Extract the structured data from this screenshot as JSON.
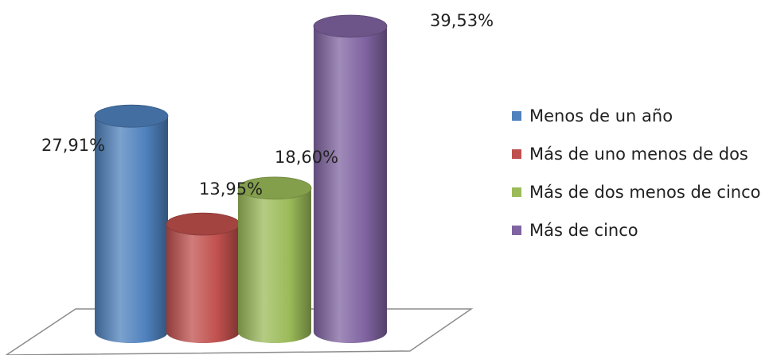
{
  "chart_data": {
    "type": "bar",
    "style": "3d-cylinder",
    "categories": [
      "Menos de un año",
      "Más de uno menos de dos",
      "Más de dos menos de cinco",
      "Más de cinco"
    ],
    "values": [
      27.91,
      13.95,
      18.6,
      39.53
    ],
    "value_labels": [
      "27,91%",
      "13,95%",
      "18,60%",
      "39,53%"
    ],
    "colors": [
      "#4F81BD",
      "#C0504D",
      "#9BBB59",
      "#8064A2"
    ],
    "legend": {
      "position": "right",
      "items": [
        "Menos de un año",
        "Más de uno menos de dos",
        "Más de dos menos de cinco",
        "Más de cinco"
      ]
    },
    "ylim": [
      0,
      39.53
    ],
    "grid": false
  }
}
